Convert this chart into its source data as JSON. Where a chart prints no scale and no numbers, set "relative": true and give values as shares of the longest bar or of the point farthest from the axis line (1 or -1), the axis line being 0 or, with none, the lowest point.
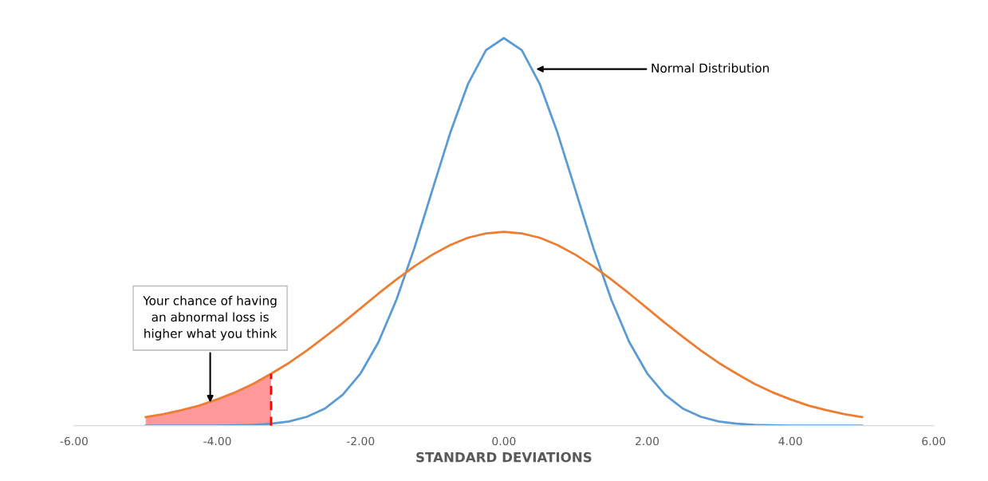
{
  "chart_data": {
    "type": "line",
    "relative": true,
    "xlabel": "STANDARD DEVIATIONS",
    "x": [
      -5,
      -4.75,
      -4.5,
      -4.25,
      -4,
      -3.75,
      -3.5,
      -3.25,
      -3,
      -2.75,
      -2.5,
      -2.25,
      -2,
      -1.75,
      -1.5,
      -1.25,
      -1,
      -0.75,
      -0.5,
      -0.25,
      0,
      0.25,
      0.5,
      0.75,
      1,
      1.25,
      1.5,
      1.75,
      2,
      2.25,
      2.5,
      2.75,
      3,
      3.25,
      3.5,
      3.75,
      4,
      4.25,
      4.5,
      4.75,
      5
    ],
    "series": [
      {
        "color": "#5b9bd5",
        "values": [
          0,
          0,
          0,
          0,
          0,
          0.001,
          0.002,
          0.005,
          0.011,
          0.023,
          0.044,
          0.08,
          0.135,
          0.216,
          0.325,
          0.458,
          0.607,
          0.755,
          0.882,
          0.969,
          1,
          0.969,
          0.882,
          0.755,
          0.607,
          0.458,
          0.325,
          0.216,
          0.135,
          0.08,
          0.044,
          0.023,
          0.011,
          0.005,
          0.002,
          0.001,
          0,
          0,
          0,
          0,
          0
        ]
      },
      {
        "type": "area",
        "color": "#ff9999",
        "x": [
          -5,
          -4.75,
          -4.5,
          -4.25,
          -4,
          -3.75,
          -3.5,
          -3.25
        ],
        "values": [
          0.022,
          0.03,
          0.04,
          0.052,
          0.068,
          0.086,
          0.108,
          0.134
        ]
      },
      {
        "color": "#ed7d31",
        "values": [
          0.022,
          0.03,
          0.04,
          0.052,
          0.068,
          0.086,
          0.108,
          0.134,
          0.162,
          0.194,
          0.229,
          0.265,
          0.303,
          0.341,
          0.377,
          0.411,
          0.441,
          0.466,
          0.485,
          0.496,
          0.5,
          0.496,
          0.485,
          0.466,
          0.441,
          0.411,
          0.377,
          0.341,
          0.303,
          0.265,
          0.229,
          0.194,
          0.162,
          0.134,
          0.108,
          0.086,
          0.068,
          0.052,
          0.04,
          0.03,
          0.022
        ]
      }
    ],
    "xlim": [
      -6,
      6
    ],
    "xticks": [
      {
        "value": -6,
        "label": "-6.00"
      },
      {
        "value": -4,
        "label": "-4.00"
      },
      {
        "value": -2,
        "label": "-2.00"
      },
      {
        "value": 0,
        "label": "0.00"
      },
      {
        "value": 2,
        "label": "2.00"
      },
      {
        "value": 4,
        "label": "4.00"
      },
      {
        "value": 6,
        "label": "6.00"
      }
    ],
    "tick_labels": "x",
    "grid": false,
    "ref_lines": [
      {
        "axis": "x",
        "value": -3.25,
        "color": "#ff0000",
        "line_style": "dashed"
      }
    ],
    "annotations": [
      {
        "text": "Normal Distribution",
        "x": 0.45,
        "y": 0.92
      },
      {
        "text": "Your chance of having\nan abnormal loss is\nhigher what you think",
        "x": -4.1,
        "y": 0.06
      }
    ]
  }
}
